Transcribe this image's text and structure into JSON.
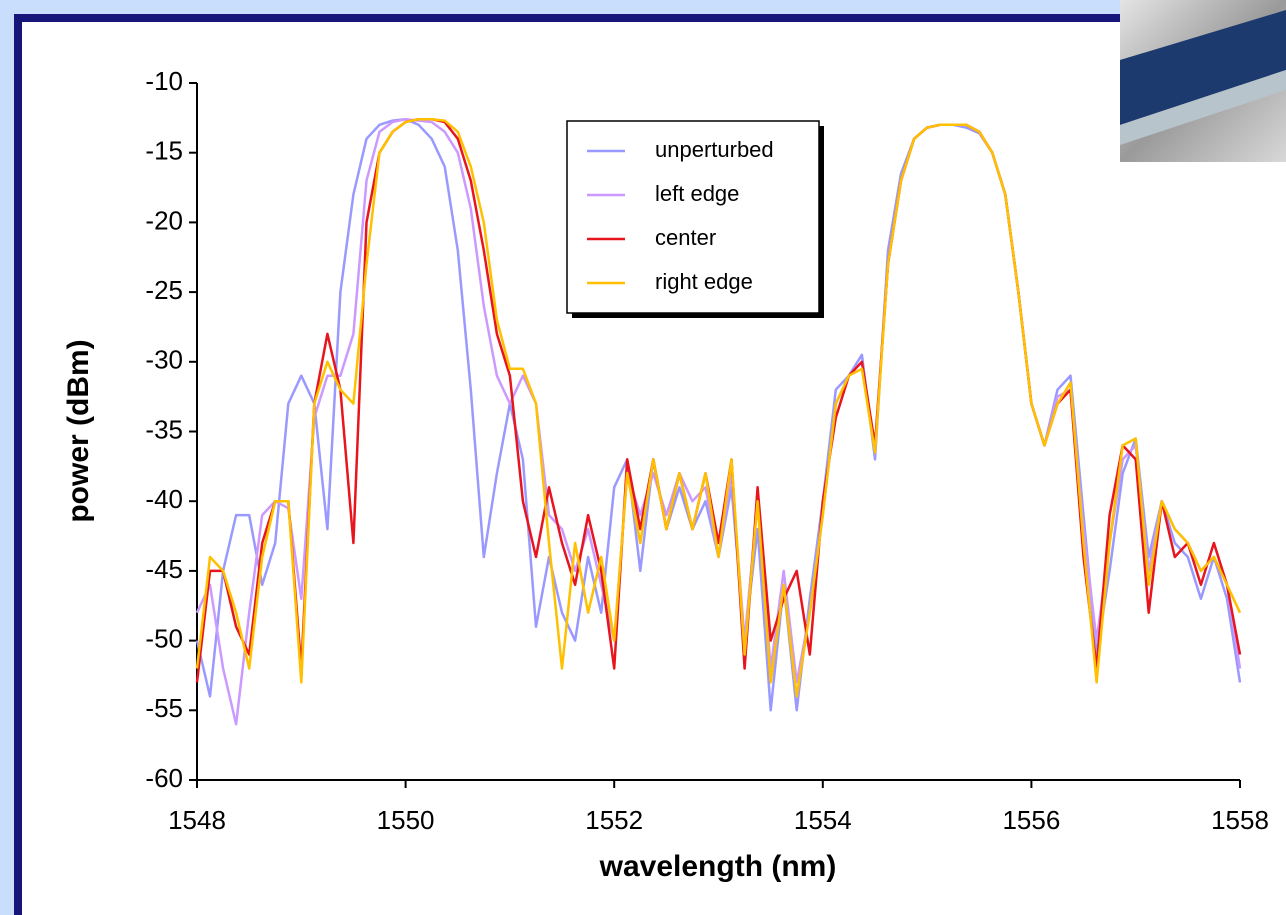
{
  "chart_data": {
    "type": "line",
    "x_label": "wavelength (nm)",
    "y_label": "power (dBm)",
    "xlim": [
      1548,
      1558
    ],
    "xticks": [
      1548,
      1550,
      1552,
      1554,
      1556,
      1558
    ],
    "ylim": [
      -60,
      -10
    ],
    "yticks": [
      -60,
      -55,
      -50,
      -45,
      -40,
      -35,
      -30,
      -25,
      -20,
      -15,
      -10
    ],
    "grid": false,
    "legend": "top-center",
    "x": [
      1548,
      1548.125,
      1548.25,
      1548.375,
      1548.5,
      1548.625,
      1548.75,
      1548.875,
      1549,
      1549.125,
      1549.25,
      1549.375,
      1549.5,
      1549.625,
      1549.75,
      1549.875,
      1550,
      1550.125,
      1550.25,
      1550.375,
      1550.5,
      1550.625,
      1550.75,
      1550.875,
      1551,
      1551.125,
      1551.25,
      1551.375,
      1551.5,
      1551.625,
      1551.75,
      1551.875,
      1552,
      1552.125,
      1552.25,
      1552.375,
      1552.5,
      1552.625,
      1552.75,
      1552.875,
      1553,
      1553.125,
      1553.25,
      1553.375,
      1553.5,
      1553.625,
      1553.75,
      1553.875,
      1554,
      1554.125,
      1554.25,
      1554.375,
      1554.5,
      1554.625,
      1554.75,
      1554.875,
      1555,
      1555.125,
      1555.25,
      1555.375,
      1555.5,
      1555.625,
      1555.75,
      1555.875,
      1556,
      1556.125,
      1556.25,
      1556.375,
      1556.5,
      1556.625,
      1556.75,
      1556.875,
      1557,
      1557.125,
      1557.25,
      1557.375,
      1557.5,
      1557.625,
      1557.75,
      1557.875,
      1558
    ],
    "series": [
      {
        "name": "unperturbed",
        "color": "#9999ff",
        "values": [
          -50,
          -54,
          -45,
          -41,
          -41,
          -46,
          -43,
          -33,
          -31,
          -33,
          -42,
          -25,
          -18,
          -14,
          -13,
          -12.7,
          -12.6,
          -13,
          -14,
          -16,
          -22,
          -32,
          -44,
          -38,
          -33,
          -37,
          -49,
          -44,
          -48,
          -50,
          -44,
          -48,
          -39,
          -37,
          -45,
          -37,
          -42,
          -39,
          -42,
          -40,
          -44,
          -39,
          -50,
          -42,
          -55,
          -46,
          -55,
          -47,
          -40,
          -32,
          -31,
          -29.5,
          -37,
          -22,
          -16.5,
          -14,
          -13.2,
          -13,
          -13,
          -13.2,
          -13.6,
          -15,
          -18,
          -25,
          -33,
          -36,
          -32,
          -31,
          -41,
          -51,
          -45,
          -38,
          -35.5,
          -44,
          -40,
          -43,
          -44,
          -47,
          -44,
          -47,
          -53
        ]
      },
      {
        "name": "left edge",
        "color": "#cc99ff",
        "values": [
          -48,
          -46,
          -52,
          -56,
          -48,
          -41,
          -40,
          -40.5,
          -47,
          -34,
          -31,
          -31,
          -28,
          -17,
          -13.5,
          -12.8,
          -12.6,
          -12.7,
          -12.8,
          -13.5,
          -15,
          -19,
          -26,
          -31,
          -33,
          -31,
          -33,
          -41,
          -42,
          -45,
          -42,
          -46,
          -50,
          -38,
          -41,
          -38,
          -41,
          -38,
          -40,
          -39,
          -44,
          -38,
          -50,
          -40,
          -52,
          -45,
          -53,
          -48,
          -41,
          -33,
          -31,
          -30,
          -36,
          -23,
          -17,
          -14,
          -13.2,
          -13,
          -13,
          -13,
          -13.5,
          -15,
          -18,
          -25,
          -33,
          -36,
          -32.5,
          -32,
          -42,
          -50,
          -43,
          -37,
          -36,
          -45,
          -40,
          -42,
          -43,
          -45,
          -44,
          -46,
          -52
        ]
      },
      {
        "name": "center",
        "color": "#e8141e",
        "values": [
          -53,
          -45,
          -45,
          -49,
          -51,
          -43,
          -40,
          -40,
          -52,
          -33,
          -28,
          -32,
          -43,
          -20,
          -15,
          -13.5,
          -12.8,
          -12.6,
          -12.6,
          -12.8,
          -14,
          -17,
          -22,
          -28,
          -31,
          -40,
          -44,
          -39,
          -43,
          -46,
          -41,
          -45,
          -52,
          -37,
          -42,
          -37,
          -42,
          -38,
          -42,
          -38,
          -43,
          -37,
          -52,
          -39,
          -50,
          -47,
          -45,
          -51,
          -40,
          -34,
          -31,
          -30,
          -36,
          -23,
          -17,
          -14,
          -13.2,
          -13,
          -13,
          -13,
          -13.5,
          -15,
          -18,
          -25,
          -33,
          -36,
          -33,
          -32,
          -44,
          -52,
          -41,
          -36,
          -37,
          -48,
          -40,
          -44,
          -43,
          -46,
          -43,
          -46,
          -51
        ]
      },
      {
        "name": "right edge",
        "color": "#ffc000",
        "values": [
          -52,
          -44,
          -45,
          -48,
          -52,
          -44,
          -40,
          -40,
          -53,
          -33,
          -30,
          -32,
          -33,
          -23,
          -15,
          -13.5,
          -12.8,
          -12.6,
          -12.6,
          -12.7,
          -13.5,
          -16,
          -20,
          -27,
          -30.5,
          -30.5,
          -33,
          -43,
          -52,
          -43,
          -48,
          -44,
          -50,
          -38,
          -43,
          -37,
          -42,
          -38,
          -42,
          -38,
          -44,
          -37,
          -51,
          -40,
          -53,
          -46,
          -54,
          -48,
          -41,
          -33,
          -31,
          -30.5,
          -36.5,
          -23,
          -17,
          -14,
          -13.2,
          -13,
          -13,
          -13,
          -13.5,
          -15,
          -18,
          -25,
          -33,
          -36,
          -33,
          -31.5,
          -43,
          -53,
          -43,
          -36,
          -35.5,
          -46,
          -40,
          -42,
          -43,
          -45,
          -44,
          -46,
          -48
        ]
      }
    ]
  }
}
